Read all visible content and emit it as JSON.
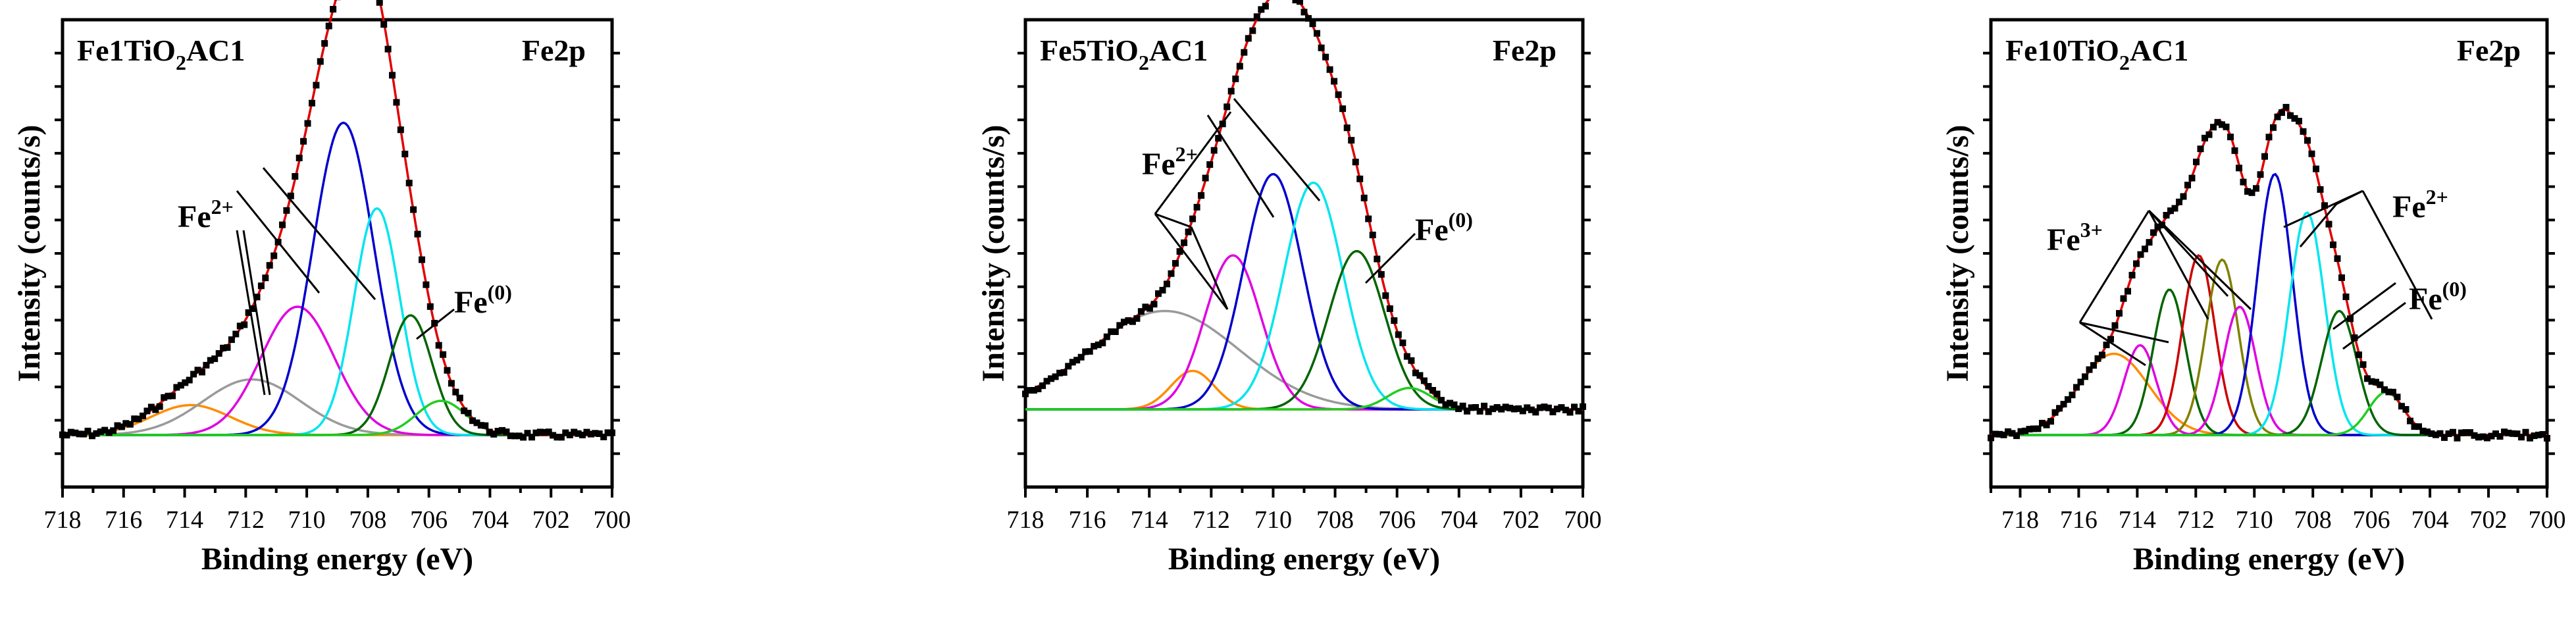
{
  "chart_data": [
    {
      "type": "line",
      "title": "Fe1TiO2AC1",
      "title_main": "Fe1TiO",
      "title_sub": "2",
      "title_tail": "AC1",
      "region": "Fe2p",
      "xlabel": "Binding energy (eV)",
      "ylabel": "Intensity (counts/s)",
      "xlim": [
        718,
        700
      ],
      "xticks": [
        "718",
        "716",
        "714",
        "712",
        "710",
        "708",
        "706",
        "704",
        "702",
        "700"
      ],
      "baseline": 0.06,
      "peaks": [
        {
          "center": 713.8,
          "height": 0.07,
          "width": 1.3,
          "color": "#ff8c00"
        },
        {
          "center": 711.8,
          "height": 0.13,
          "width": 1.6,
          "color": "#9a9a9a"
        },
        {
          "center": 710.3,
          "height": 0.3,
          "width": 1.2,
          "color": "#e000e0"
        },
        {
          "center": 708.8,
          "height": 0.73,
          "width": 1.0,
          "color": "#0000cc"
        },
        {
          "center": 707.7,
          "height": 0.53,
          "width": 0.75,
          "color": "#00e5ee"
        },
        {
          "center": 706.6,
          "height": 0.28,
          "width": 0.7,
          "color": "#006400"
        },
        {
          "center": 705.6,
          "height": 0.08,
          "width": 0.8,
          "color": "#22cc22"
        }
      ],
      "annotations": [
        {
          "label": "Fe",
          "sup": "2+"
        },
        {
          "label": "Fe",
          "sup": "(0)"
        }
      ]
    },
    {
      "type": "line",
      "title": "Fe5TiO2AC1",
      "title_main": "Fe5TiO",
      "title_sub": "2",
      "title_tail": "AC1",
      "region": "Fe2p",
      "xlabel": "Binding energy (eV)",
      "ylabel": "Intensity (counts/s)",
      "xlim": [
        718,
        700
      ],
      "xticks": [
        "718",
        "716",
        "714",
        "712",
        "710",
        "708",
        "706",
        "704",
        "702",
        "700"
      ],
      "baseline": 0.12,
      "peaks": [
        {
          "center": 712.6,
          "height": 0.09,
          "width": 0.7,
          "color": "#ff8c00"
        },
        {
          "center": 713.5,
          "height": 0.23,
          "width": 2.4,
          "color": "#9a9a9a"
        },
        {
          "center": 711.3,
          "height": 0.36,
          "width": 0.9,
          "color": "#e000e0"
        },
        {
          "center": 710.0,
          "height": 0.55,
          "width": 0.95,
          "color": "#0000cc"
        },
        {
          "center": 708.7,
          "height": 0.53,
          "width": 0.95,
          "color": "#00e5ee"
        },
        {
          "center": 707.3,
          "height": 0.37,
          "width": 0.9,
          "color": "#006400"
        },
        {
          "center": 705.6,
          "height": 0.05,
          "width": 0.7,
          "color": "#22cc22"
        }
      ],
      "annotations": [
        {
          "label": "Fe",
          "sup": "2+"
        },
        {
          "label": "Fe",
          "sup": "(0)"
        }
      ]
    },
    {
      "type": "line",
      "title": "Fe10TiO2AC1",
      "title_main": "Fe10TiO",
      "title_sub": "2",
      "title_tail": "AC1",
      "region": "Fe2p",
      "xlabel": "Binding energy (eV)",
      "ylabel": "Intensity (counts/s)",
      "xlim": [
        719,
        700
      ],
      "xticks": [
        "718",
        "716",
        "714",
        "712",
        "710",
        "708",
        "706",
        "704",
        "702",
        "700"
      ],
      "baseline": 0.06,
      "peaks": [
        {
          "center": 714.8,
          "height": 0.19,
          "width": 1.2,
          "color": "#ff8c00"
        },
        {
          "center": 713.9,
          "height": 0.21,
          "width": 0.55,
          "color": "#e000e0"
        },
        {
          "center": 712.9,
          "height": 0.34,
          "width": 0.55,
          "color": "#006400"
        },
        {
          "center": 711.9,
          "height": 0.42,
          "width": 0.55,
          "color": "#cc0000"
        },
        {
          "center": 711.1,
          "height": 0.41,
          "width": 0.55,
          "color": "#808000"
        },
        {
          "center": 710.5,
          "height": 0.3,
          "width": 0.55,
          "color": "#e000e0"
        },
        {
          "center": 709.3,
          "height": 0.61,
          "width": 0.6,
          "color": "#0000cc"
        },
        {
          "center": 708.2,
          "height": 0.52,
          "width": 0.6,
          "color": "#00e5ee"
        },
        {
          "center": 707.1,
          "height": 0.29,
          "width": 0.6,
          "color": "#006400"
        },
        {
          "center": 705.5,
          "height": 0.1,
          "width": 0.6,
          "color": "#22cc22"
        }
      ],
      "annotations": [
        {
          "label": "Fe",
          "sup": "3+"
        },
        {
          "label": "Fe",
          "sup": "2+"
        },
        {
          "label": "Fe",
          "sup": "(0)"
        }
      ]
    }
  ]
}
